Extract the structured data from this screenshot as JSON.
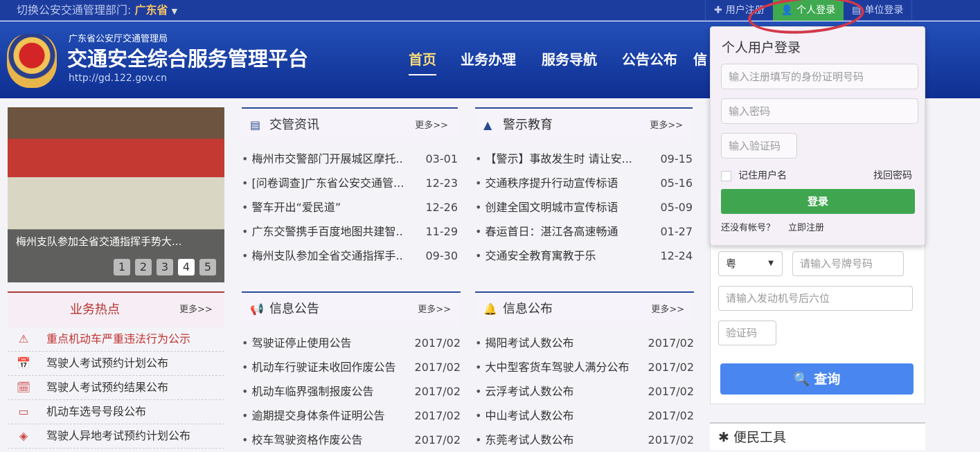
{
  "topbar": {
    "switch_label": "切换公安交通管理部门:",
    "province": "广东省",
    "links": [
      {
        "label": "用户注册",
        "icon": "plus-icon"
      },
      {
        "label": "个人登录",
        "icon": "user-icon"
      },
      {
        "label": "单位登录",
        "icon": "building-icon"
      }
    ]
  },
  "header": {
    "org": "广东省公安厅交通管理局",
    "title": "交通安全综合服务管理平台",
    "url": "http://gd.122.gov.cn",
    "nav": [
      "首页",
      "业务办理",
      "服务导航",
      "公告公布",
      "信"
    ]
  },
  "carousel": {
    "caption": "梅州支队参加全省交通指挥手势大...",
    "pages": [
      "1",
      "2",
      "3",
      "4",
      "5"
    ],
    "active_page": 4
  },
  "hot": {
    "title": "业务热点",
    "more": "更多>>",
    "items": [
      "重点机动车严重违法行为公示",
      "驾驶人考试预约计划公布",
      "驾驶人考试预约结果公布",
      "机动车选号号段公布",
      "驾驶人异地考试预约计划公布"
    ]
  },
  "news": {
    "title": "交管资讯",
    "more": "更多>>",
    "rows": [
      {
        "t": "梅州市交警部门开展城区摩托..",
        "d": "03-01"
      },
      {
        "t": "[问卷调查]广东省公安交通管...",
        "d": "12-23"
      },
      {
        "t": "警车开出“爱民道”",
        "d": "12-26"
      },
      {
        "t": "广东交警携手百度地图共建智..",
        "d": "11-29"
      },
      {
        "t": "梅州支队参加全省交通指挥手..",
        "d": "09-30"
      }
    ]
  },
  "warn": {
    "title": "警示教育",
    "more": "更多>>",
    "rows": [
      {
        "t": "【警示】事故发生时 请让安...",
        "d": "09-15"
      },
      {
        "t": "交通秩序提升行动宣传标语",
        "d": "05-16"
      },
      {
        "t": "创建全国文明城市宣传标语",
        "d": "05-09"
      },
      {
        "t": "春运首日：湛江各高速畅通",
        "d": "01-27"
      },
      {
        "t": "交通安全教育寓教于乐",
        "d": "12-24"
      }
    ]
  },
  "notice": {
    "title": "信息公告",
    "more": "更多>>",
    "rows": [
      {
        "t": "驾驶证停止使用公告",
        "d": "2017/02"
      },
      {
        "t": "机动车行驶证未收回作废公告",
        "d": "2017/02"
      },
      {
        "t": "机动车临界强制报废公告",
        "d": "2017/02"
      },
      {
        "t": "逾期提交身体条件证明公告",
        "d": "2017/02"
      },
      {
        "t": "校车驾驶资格作废公告",
        "d": "2017/02"
      }
    ]
  },
  "info": {
    "title": "信息公布",
    "more": "更多>>",
    "rows": [
      {
        "t": "揭阳考试人数公布",
        "d": "2017/02"
      },
      {
        "t": "大中型客货车驾驶人满分公布",
        "d": "2017/02"
      },
      {
        "t": "云浮考试人数公布",
        "d": "2017/02"
      },
      {
        "t": "中山考试人数公布",
        "d": "2017/02"
      },
      {
        "t": "东莞考试人数公布",
        "d": "2017/02"
      }
    ]
  },
  "query": {
    "province": "粤",
    "plate_placeholder": "请输入号牌号码",
    "engine_placeholder": "请输入发动机号后六位",
    "captcha_placeholder": "验证码",
    "button": "查询"
  },
  "tools": {
    "title": "便民工具"
  },
  "login": {
    "title": "个人用户登录",
    "id_placeholder": "输入注册填写的身份证明号码",
    "pwd_placeholder": "输入密码",
    "captcha_placeholder": "输入验证码",
    "remember": "记住用户名",
    "forgot": "找回密码",
    "button": "登录",
    "no_account": "还没有帐号？",
    "register": "立即注册"
  },
  "colors": {
    "nav_blue": "#1d3d9e",
    "login_green": "#3fa64f",
    "query_blue": "#4a86f0",
    "hot_red": "#b5322f",
    "annotation_circle": "#d2384a"
  }
}
